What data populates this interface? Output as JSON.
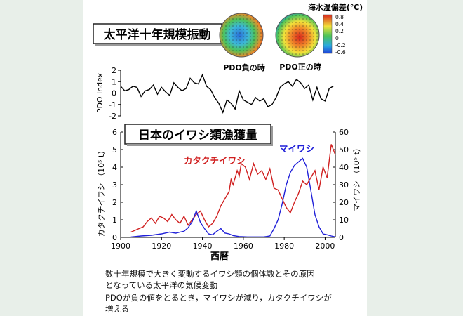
{
  "pdo_panel": {
    "title": "太平洋十年規模振動",
    "legend_title": "海水温偏差(℃)",
    "legend_ticks": [
      "0.8",
      "0.4",
      "0.2",
      "0",
      "-0.2",
      "-0.6"
    ],
    "globe_negative_label": "PDO負の時",
    "globe_positive_label": "PDO正の時",
    "colors": {
      "warm": "#d8261c",
      "cool": "#1e40d8",
      "mid": "#4cc35a",
      "yellow": "#f2e23a"
    }
  },
  "sardine_panel": {
    "title": "日本のイワシ類漁獲量",
    "series_left_label": "カタクチイワシ",
    "series_right_label": "マイワシ",
    "colors": {
      "anchovy": "#d02020",
      "sardine": "#1f1fd8"
    }
  },
  "caption": {
    "line1": "数十年規模で大きく変動するイワシ類の個体数とその原因",
    "line2": "となっている太平洋の気候変動",
    "line3": "PDOが負の値をとるとき，マイワシが減り，カタクチイワシが",
    "line4": "増える"
  },
  "chart_data": [
    {
      "type": "line",
      "ylabel": "PDO index",
      "ylim": [
        -2,
        2
      ],
      "yticks": [
        -2,
        -1,
        0,
        1,
        2
      ],
      "xlim": [
        1900,
        2005
      ],
      "color": "#000000",
      "x": [
        1900,
        1902,
        1904,
        1906,
        1908,
        1910,
        1912,
        1914,
        1916,
        1918,
        1920,
        1922,
        1924,
        1926,
        1928,
        1930,
        1932,
        1934,
        1936,
        1938,
        1940,
        1942,
        1944,
        1946,
        1948,
        1950,
        1952,
        1954,
        1956,
        1958,
        1960,
        1962,
        1964,
        1966,
        1968,
        1970,
        1972,
        1974,
        1976,
        1978,
        1980,
        1982,
        1984,
        1986,
        1988,
        1990,
        1992,
        1994,
        1996,
        1998,
        2000,
        2002,
        2004
      ],
      "y": [
        0.6,
        0.2,
        0.3,
        0.6,
        0.5,
        -0.3,
        0.2,
        0.3,
        0.7,
        -0.1,
        0.5,
        0.1,
        -0.2,
        0.9,
        0.5,
        0.2,
        0.4,
        1.3,
        0.9,
        0.8,
        1.6,
        0.6,
        0.3,
        -0.4,
        -0.9,
        -1.7,
        -0.6,
        -0.9,
        -1.4,
        0.2,
        -0.6,
        -0.8,
        -1.0,
        -0.4,
        -0.7,
        -0.5,
        -1.2,
        -1.0,
        -0.4,
        0.5,
        0.8,
        1.0,
        0.6,
        1.2,
        0.9,
        0.4,
        0.7,
        -0.6,
        0.5,
        -0.5,
        -0.7,
        0.4,
        0.6
      ]
    },
    {
      "type": "line",
      "xlabel": "西暦",
      "xlim": [
        1900,
        2005
      ],
      "xticks": [
        1900,
        1920,
        1940,
        1960,
        1980,
        2000
      ],
      "ylim_left": [
        0,
        6
      ],
      "yticks_left": [
        0,
        1,
        2,
        3,
        4,
        5,
        6
      ],
      "ylim_right": [
        0,
        60
      ],
      "yticks_right": [
        0,
        10,
        20,
        30,
        40,
        50,
        60
      ],
      "ylabel_left": "カタクチイワシ （10⁵ t）",
      "ylabel_right": "マイワシ （10⁵ t）",
      "series": [
        {
          "name": "カタクチイワシ",
          "axis": "left",
          "color": "#d02020",
          "x": [
            1905,
            1907,
            1909,
            1911,
            1913,
            1915,
            1917,
            1919,
            1921,
            1923,
            1925,
            1927,
            1929,
            1931,
            1933,
            1935,
            1937,
            1939,
            1941,
            1943,
            1945,
            1947,
            1949,
            1951,
            1953,
            1954,
            1955,
            1957,
            1958,
            1959,
            1961,
            1963,
            1965,
            1967,
            1969,
            1971,
            1973,
            1975,
            1977,
            1979,
            1981,
            1983,
            1985,
            1987,
            1989,
            1991,
            1993,
            1995,
            1997,
            1999,
            2001,
            2003,
            2005
          ],
          "values": [
            0.3,
            0.4,
            0.5,
            0.6,
            0.9,
            1.1,
            0.8,
            1.2,
            1.1,
            0.9,
            1.3,
            1.0,
            0.8,
            1.2,
            0.7,
            1.0,
            1.3,
            1.5,
            1.0,
            0.6,
            0.8,
            1.2,
            1.8,
            2.2,
            2.6,
            3.3,
            3.0,
            3.8,
            3.5,
            4.2,
            4.0,
            3.3,
            4.2,
            3.6,
            3.8,
            3.3,
            3.9,
            2.8,
            2.7,
            2.2,
            1.7,
            1.4,
            2.0,
            2.5,
            3.2,
            3.0,
            3.4,
            3.8,
            2.7,
            4.0,
            3.4,
            5.3,
            4.7
          ]
        },
        {
          "name": "マイワシ",
          "axis": "right",
          "color": "#1f1fd8",
          "x": [
            1905,
            1910,
            1915,
            1920,
            1924,
            1927,
            1929,
            1931,
            1933,
            1935,
            1937,
            1939,
            1941,
            1943,
            1945,
            1947,
            1949,
            1951,
            1953,
            1955,
            1958,
            1962,
            1966,
            1970,
            1973,
            1975,
            1977,
            1979,
            1981,
            1983,
            1985,
            1987,
            1989,
            1991,
            1993,
            1995,
            1997,
            1999,
            2001,
            2003,
            2005
          ],
          "values": [
            0.2,
            0.8,
            1.2,
            2.0,
            3.0,
            2.4,
            3.0,
            3.5,
            5.5,
            9.0,
            15.0,
            8.5,
            5.0,
            2.0,
            1.5,
            3.5,
            5.0,
            2.5,
            2.0,
            1.0,
            0.5,
            0.3,
            0.3,
            0.3,
            0.8,
            5.0,
            10.0,
            19.0,
            30.0,
            37.0,
            41.0,
            43.0,
            45.0,
            40.0,
            27.0,
            13.0,
            6.0,
            2.0,
            1.5,
            0.8,
            0.3
          ]
        }
      ]
    }
  ]
}
